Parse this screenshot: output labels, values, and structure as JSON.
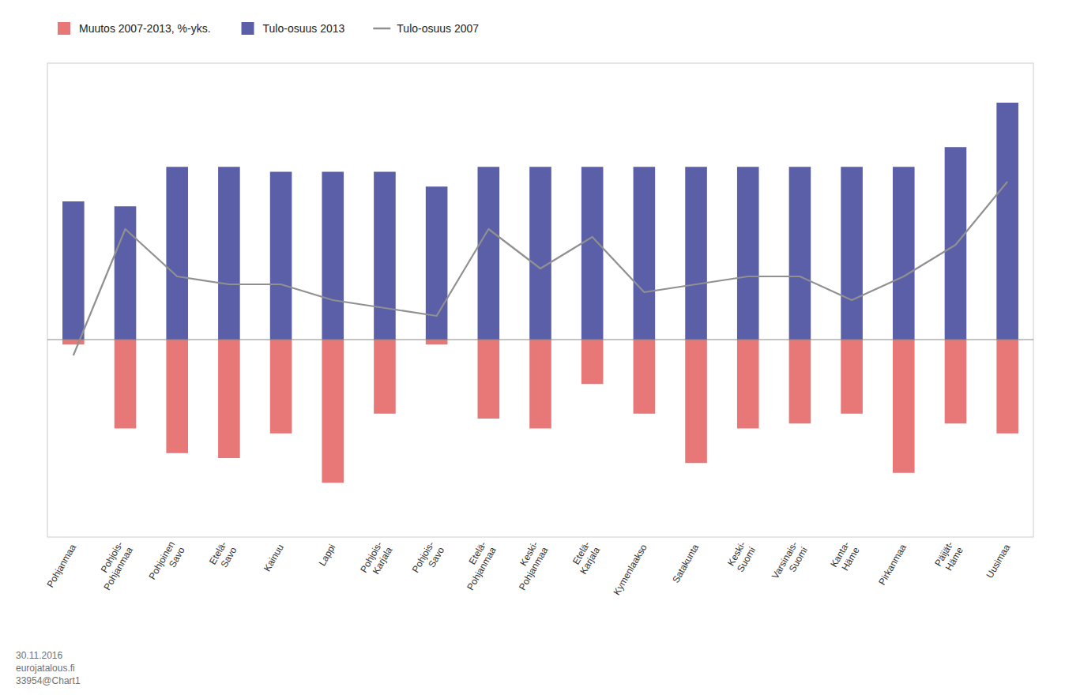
{
  "chart_data": {
    "type": "bar",
    "stacked": true,
    "categories": [
      "Pohjanmaa",
      "Pohjois-\nPohjanmaa",
      "Pohjoinen\nSavo",
      "Etelä-\nSavo",
      "Kainuu",
      "Lappi",
      "Pohjois-\nKarjala",
      "Pohjois-\nSavo",
      "Etelä-\nPohjanmaa",
      "Keski-\nPohjanmaa",
      "Etelä-\nKarjala",
      "Kymenlaakso",
      "Satakunta",
      "Keski-\nSuomi",
      "Varsinais-\nSuomi",
      "Kanta-\nHäme",
      "Pirkanmaa",
      "Päijät-\nHäme",
      "Uusimaa"
    ],
    "series": [
      {
        "name": "Muutos 2007-2013, %-yks.",
        "color": "#e87878",
        "values": [
          -0.5,
          -9.0,
          -11.5,
          -12.0,
          -9.5,
          -14.5,
          -7.5,
          -0.5,
          -8.0,
          -9.0,
          -4.5,
          -7.5,
          -12.5,
          -9.0,
          -8.5,
          -7.5,
          -13.5,
          -8.5,
          -9.5
        ]
      },
      {
        "name": "Tulo-osuus 2013",
        "color": "#5a5fa8",
        "values": [
          14.0,
          13.5,
          17.5,
          17.5,
          17.0,
          17.0,
          17.0,
          15.5,
          17.5,
          17.5,
          17.5,
          17.5,
          17.5,
          17.5,
          17.5,
          17.5,
          17.5,
          19.5,
          24.0
        ]
      },
      {
        "name": "Tulo-osuus 2007",
        "color": "#909090",
        "type": "line",
        "axis": "y2",
        "values": [
          26.5,
          34.5,
          31.5,
          31.0,
          31.0,
          30.0,
          29.5,
          29.0,
          34.5,
          32.0,
          34.0,
          30.5,
          31.0,
          31.5,
          31.5,
          30.0,
          31.5,
          33.5,
          37.5
        ]
      }
    ],
    "ylim": [
      -20,
      28
    ],
    "yticks": [],
    "y2lim": [
      15,
      45
    ],
    "y2ticks": [],
    "tick_labels": "x",
    "grid": false,
    "legend": "upper left",
    "annotations": [
      "30.11.2016\neurojatalous.fi\n33954@Chart1"
    ]
  }
}
